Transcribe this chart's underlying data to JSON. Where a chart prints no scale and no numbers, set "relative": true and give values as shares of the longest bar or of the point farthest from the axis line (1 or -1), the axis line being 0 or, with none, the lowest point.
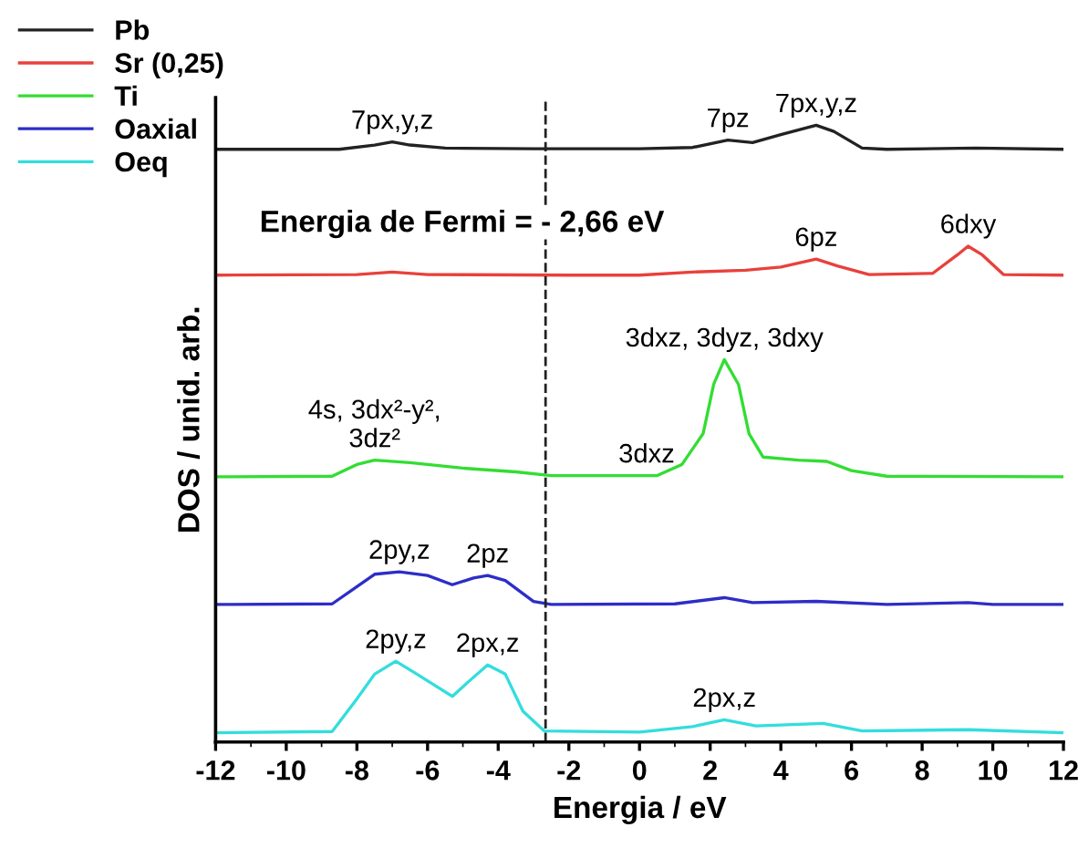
{
  "chart_data": {
    "type": "line",
    "relative": true,
    "xlabel": "Energia / eV",
    "ylabel": "DOS / unid. arb.",
    "xlim": [
      -12,
      12
    ],
    "xticks": [
      -12,
      -10,
      -8,
      -6,
      -4,
      -2,
      0,
      2,
      4,
      6,
      8,
      10,
      12
    ],
    "legend": "top left",
    "grid": false,
    "marker": "none",
    "line_style": "solid",
    "series": [
      {
        "name": "Pb",
        "color": "#222222",
        "x": [
          -12,
          -8.5,
          -7.5,
          -7,
          -6.5,
          -5.5,
          -3,
          0,
          1.5,
          2.5,
          3.2,
          4,
          5,
          5.5,
          6.3,
          7,
          9.5,
          12
        ],
        "values": [
          0.961,
          0.961,
          0.968,
          0.973,
          0.968,
          0.963,
          0.962,
          0.962,
          0.964,
          0.976,
          0.972,
          0.985,
          1.0,
          0.99,
          0.963,
          0.961,
          0.963,
          0.961
        ]
      },
      {
        "name": "Sr (0,25)",
        "color": "#e8413c",
        "x": [
          -12,
          -8,
          -7,
          -6,
          -2,
          0,
          1.5,
          3,
          4,
          5,
          5.6,
          6.5,
          8.3,
          9.0,
          9.3,
          9.7,
          10.3,
          12
        ],
        "values": [
          0.757,
          0.758,
          0.762,
          0.758,
          0.757,
          0.757,
          0.762,
          0.765,
          0.77,
          0.783,
          0.772,
          0.758,
          0.76,
          0.79,
          0.804,
          0.79,
          0.758,
          0.757
        ]
      },
      {
        "name": "Ti",
        "color": "#33dd33",
        "x": [
          -12,
          -8.7,
          -8,
          -7.5,
          -6.5,
          -5,
          -3.5,
          -2.5,
          0.5,
          1.2,
          1.8,
          2.1,
          2.4,
          2.8,
          3.1,
          3.5,
          4.5,
          5.3,
          6,
          7,
          12
        ],
        "values": [
          0.43,
          0.431,
          0.45,
          0.457,
          0.453,
          0.444,
          0.438,
          0.432,
          0.432,
          0.45,
          0.5,
          0.58,
          0.62,
          0.58,
          0.5,
          0.462,
          0.457,
          0.455,
          0.44,
          0.431,
          0.43
        ]
      },
      {
        "name": "Oaxial",
        "color": "#2d2dc8",
        "x": [
          -12,
          -8.7,
          -8,
          -7.5,
          -6.8,
          -6,
          -5.3,
          -4.7,
          -4.3,
          -3.8,
          -3,
          -2.5,
          1,
          2.4,
          3.2,
          5,
          7,
          9.3,
          10,
          12
        ],
        "values": [
          0.223,
          0.224,
          0.252,
          0.272,
          0.276,
          0.27,
          0.255,
          0.266,
          0.27,
          0.262,
          0.228,
          0.223,
          0.224,
          0.234,
          0.226,
          0.228,
          0.223,
          0.226,
          0.223,
          0.223
        ]
      },
      {
        "name": "Oeq",
        "color": "#33dddd",
        "x": [
          -12,
          -8.7,
          -8,
          -7.5,
          -6.9,
          -6.3,
          -5.3,
          -4.8,
          -4.3,
          -3.8,
          -3.3,
          -2.7,
          0,
          1.5,
          2.4,
          3.3,
          5.2,
          6.3,
          9.3,
          12
        ],
        "values": [
          0.015,
          0.017,
          0.07,
          0.11,
          0.131,
          0.11,
          0.074,
          0.1,
          0.125,
          0.11,
          0.05,
          0.018,
          0.016,
          0.025,
          0.036,
          0.026,
          0.03,
          0.018,
          0.02,
          0.015
        ]
      }
    ],
    "ref_lines": [
      {
        "axis": "x",
        "value": -2.66,
        "label": "Energia de Fermi = - 2,66 eV",
        "color": "#222222",
        "line_style": "dashed"
      }
    ],
    "annotations": [
      {
        "text": "7px,y,z",
        "x": -7,
        "y": 0.973
      },
      {
        "text": "7pz",
        "x": 2.5,
        "y": 0.976
      },
      {
        "text": "7px,y,z",
        "x": 5,
        "y": 1.0
      },
      {
        "text": "6pz",
        "x": 5,
        "y": 0.783
      },
      {
        "text": "6dxy",
        "x": 9.3,
        "y": 0.804
      },
      {
        "text": "3dxz, 3dyz, 3dxy",
        "x": 2.4,
        "y": 0.62
      },
      {
        "text": "3dxz",
        "x": 0.2,
        "y": 0.432
      },
      {
        "text": "4s, 3dx²-y²,\n3dz²",
        "x": -7.5,
        "y": 0.457
      },
      {
        "text": "2py,z",
        "x": -6.8,
        "y": 0.276
      },
      {
        "text": "2pz",
        "x": -4.3,
        "y": 0.27
      },
      {
        "text": "2py,z",
        "x": -6.9,
        "y": 0.131
      },
      {
        "text": "2px,z",
        "x": -4.3,
        "y": 0.125
      },
      {
        "text": "2px,z",
        "x": 2.4,
        "y": 0.036
      }
    ]
  }
}
